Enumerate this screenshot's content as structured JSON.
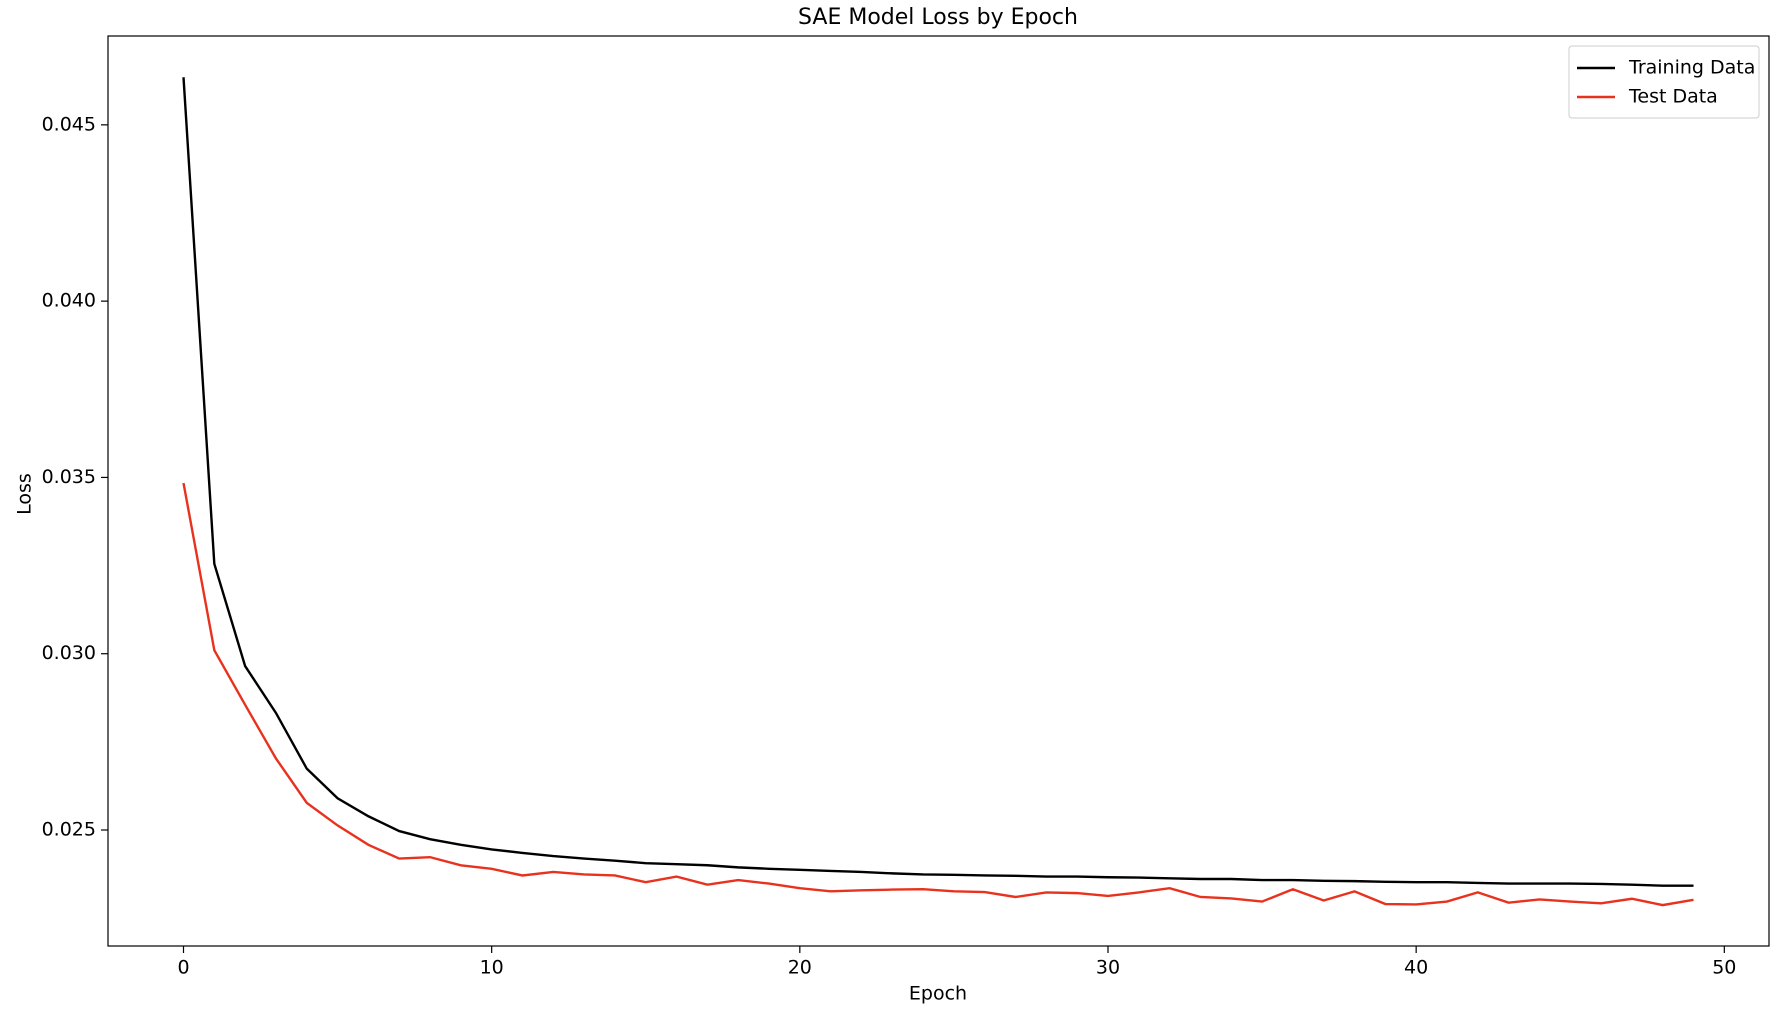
{
  "chart_data": {
    "type": "line",
    "title": "SAE Model Loss by Epoch",
    "x_label": "Epoch",
    "y_label": "Loss",
    "x": [
      0,
      1,
      2,
      3,
      4,
      5,
      6,
      7,
      8,
      9,
      10,
      11,
      12,
      13,
      14,
      15,
      16,
      17,
      18,
      19,
      20,
      21,
      22,
      23,
      24,
      25,
      26,
      27,
      28,
      29,
      30,
      31,
      32,
      33,
      34,
      35,
      36,
      37,
      38,
      39,
      40,
      41,
      42,
      43,
      44,
      45,
      46,
      47,
      48,
      49
    ],
    "series": [
      {
        "name": "Training Data",
        "color": "#000000",
        "values": [
          0.04635,
          0.03255,
          0.02965,
          0.02832,
          0.02674,
          0.0259,
          0.02539,
          0.02497,
          0.02474,
          0.02458,
          0.02445,
          0.02435,
          0.02426,
          0.02419,
          0.02413,
          0.02406,
          0.02403,
          0.024,
          0.02394,
          0.0239,
          0.02387,
          0.02384,
          0.02381,
          0.02377,
          0.02374,
          0.02373,
          0.02371,
          0.0237,
          0.02368,
          0.02368,
          0.02366,
          0.02365,
          0.02363,
          0.02361,
          0.02361,
          0.02358,
          0.02358,
          0.02356,
          0.02355,
          0.02353,
          0.02352,
          0.02352,
          0.0235,
          0.02348,
          0.02348,
          0.02348,
          0.02347,
          0.02345,
          0.02342,
          0.02342
        ]
      },
      {
        "name": "Test Data",
        "color": "#e8321e",
        "values": [
          0.03484,
          0.0301,
          0.02855,
          0.02703,
          0.02577,
          0.02513,
          0.02458,
          0.02419,
          0.02423,
          0.024,
          0.0239,
          0.02371,
          0.02381,
          0.02374,
          0.02371,
          0.02352,
          0.02368,
          0.02345,
          0.02358,
          0.02348,
          0.02335,
          0.02326,
          0.02329,
          0.02331,
          0.02332,
          0.02326,
          0.02324,
          0.0231,
          0.02323,
          0.02321,
          0.02313,
          0.02323,
          0.02335,
          0.0231,
          0.02306,
          0.02297,
          0.02332,
          0.023,
          0.02326,
          0.0229,
          0.02289,
          0.02297,
          0.02323,
          0.02294,
          0.02303,
          0.02297,
          0.02292,
          0.02305,
          0.02287,
          0.02302
        ]
      }
    ],
    "xlim": [
      -2.45,
      51.45
    ],
    "ylim": [
      0.02171,
      0.04752
    ],
    "xticks": [
      0,
      10,
      20,
      30,
      40,
      50
    ],
    "yticks": [
      0.025,
      {
        "value": 0.03,
        "label": "0.030"
      },
      0.035,
      {
        "value": 0.04,
        "label": "0.040"
      },
      0.045
    ],
    "legend": "upper right",
    "grid": false
  }
}
